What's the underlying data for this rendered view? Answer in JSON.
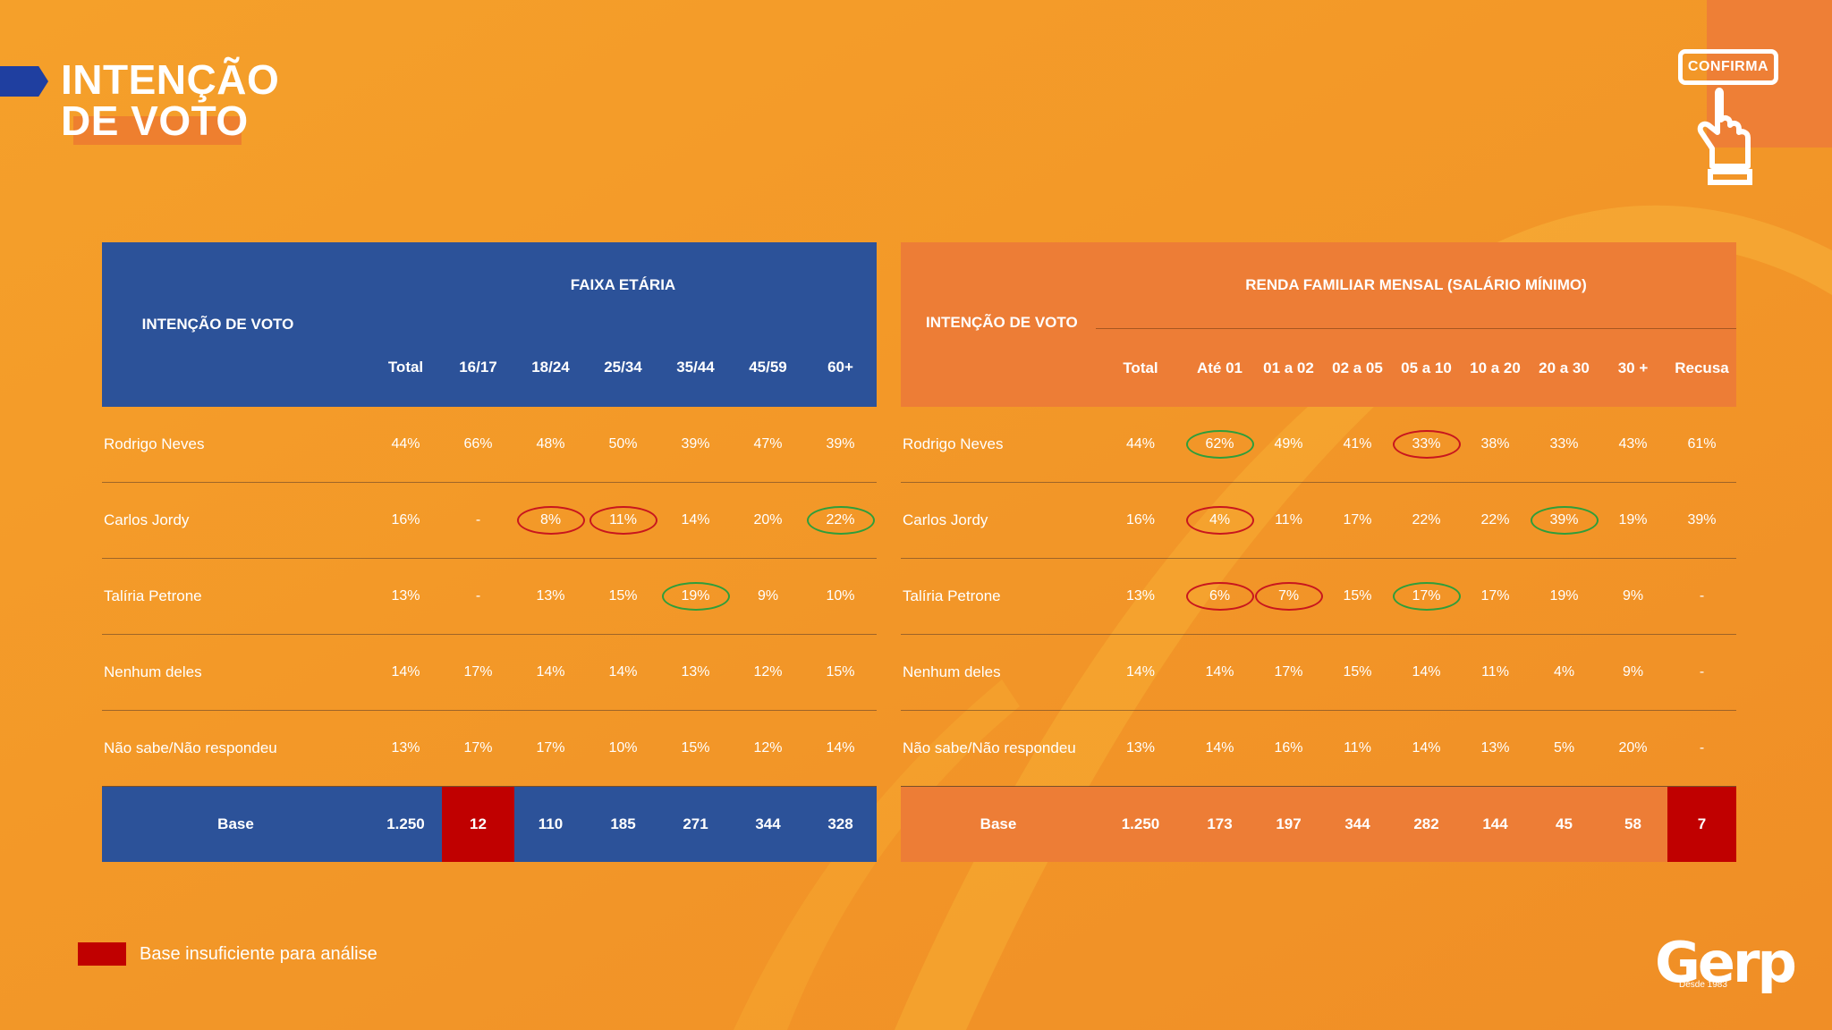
{
  "title": {
    "line1": "INTENÇÃO",
    "line2": "DE VOTO"
  },
  "confirma_label": "CONFIRMA",
  "colors": {
    "blue": "#2C5299",
    "orange": "#ED7D36",
    "background": "#F6A12B",
    "insufficient": "#C00000",
    "ring_red": "#C8161E",
    "ring_green": "#2E9E3B"
  },
  "left_table": {
    "row_header": "INTENÇÃO DE VOTO",
    "group_header": "FAIXA ETÁRIA",
    "columns": [
      "Total",
      "16/17",
      "18/24",
      "25/34",
      "35/44",
      "45/59",
      "60+"
    ],
    "rows": [
      {
        "name": "Rodrigo Neves",
        "values": [
          "44%",
          "66%",
          "48%",
          "50%",
          "39%",
          "47%",
          "39%"
        ]
      },
      {
        "name": "Carlos Jordy",
        "values": [
          "16%",
          "-",
          "8%",
          "11%",
          "14%",
          "20%",
          "22%"
        ]
      },
      {
        "name": "Talíria Petrone",
        "values": [
          "13%",
          "-",
          "13%",
          "15%",
          "19%",
          "9%",
          "10%"
        ]
      },
      {
        "name": "Nenhum deles",
        "values": [
          "14%",
          "17%",
          "14%",
          "14%",
          "13%",
          "12%",
          "15%"
        ]
      },
      {
        "name": "Não sabe/Não respondeu",
        "values": [
          "13%",
          "17%",
          "17%",
          "10%",
          "15%",
          "12%",
          "14%"
        ]
      }
    ],
    "base": {
      "label": "Base",
      "values": [
        "1.250",
        "12",
        "110",
        "185",
        "271",
        "344",
        "328"
      ]
    }
  },
  "right_table": {
    "row_header": "INTENÇÃO DE VOTO",
    "group_header": "RENDA FAMILIAR MENSAL (SALÁRIO MÍNIMO)",
    "columns": [
      "Total",
      "Até 01",
      "01 a 02",
      "02 a 05",
      "05 a 10",
      "10 a 20",
      "20 a 30",
      "30 +",
      "Recusa"
    ],
    "rows": [
      {
        "name": "Rodrigo Neves",
        "values": [
          "44%",
          "62%",
          "49%",
          "41%",
          "33%",
          "38%",
          "33%",
          "43%",
          "61%"
        ]
      },
      {
        "name": "Carlos Jordy",
        "values": [
          "16%",
          "4%",
          "11%",
          "17%",
          "22%",
          "22%",
          "39%",
          "19%",
          "39%"
        ]
      },
      {
        "name": "Talíria Petrone",
        "values": [
          "13%",
          "6%",
          "7%",
          "15%",
          "17%",
          "17%",
          "19%",
          "9%",
          "-"
        ]
      },
      {
        "name": "Nenhum deles",
        "values": [
          "14%",
          "14%",
          "17%",
          "15%",
          "14%",
          "11%",
          "4%",
          "9%",
          "-"
        ]
      },
      {
        "name": "Não sabe/Não respondeu",
        "values": [
          "13%",
          "14%",
          "16%",
          "11%",
          "14%",
          "13%",
          "5%",
          "20%",
          "-"
        ]
      }
    ],
    "base": {
      "label": "Base",
      "values": [
        "1.250",
        "173",
        "197",
        "344",
        "282",
        "144",
        "45",
        "58",
        "7"
      ]
    }
  },
  "legend": "Base insuficiente para análise",
  "logo": {
    "name": "Gerp",
    "tagline": "Desde 1983"
  }
}
